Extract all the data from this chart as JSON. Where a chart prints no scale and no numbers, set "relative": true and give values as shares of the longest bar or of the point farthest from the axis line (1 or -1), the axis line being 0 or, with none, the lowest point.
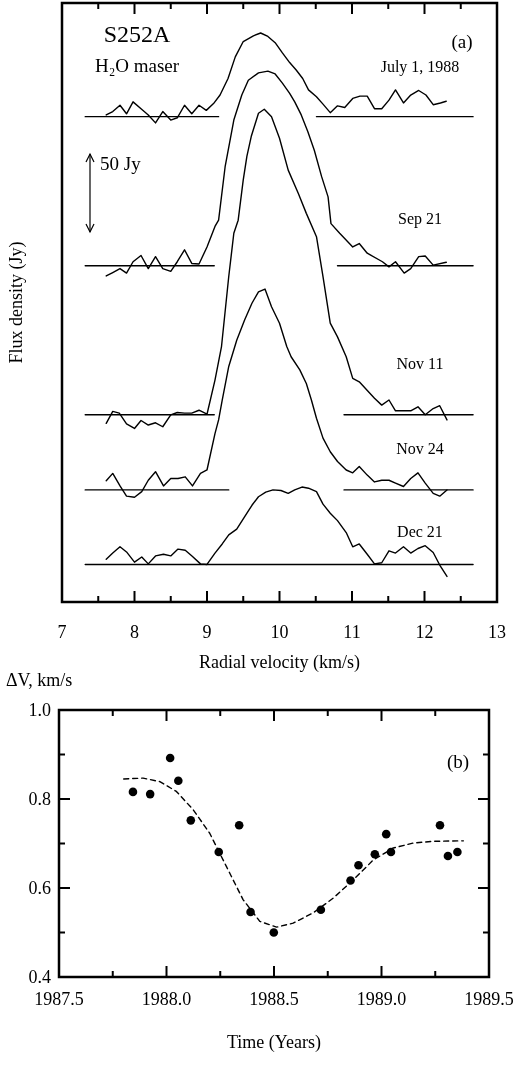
{
  "chart_data": [
    {
      "type": "line",
      "relative": true,
      "xlabel": "Radial velocity (km/s)",
      "ylabel": "Flux density (Jy)",
      "annotations": [
        "S252A",
        "H₂O maser",
        "(a)",
        "50 Jy"
      ],
      "xlim": [
        7,
        13
      ],
      "xticks": [
        7,
        {
          "value": 7.5,
          "label": null
        },
        8,
        {
          "value": 8.5,
          "label": null
        },
        9,
        {
          "value": 9.5,
          "label": null
        },
        10,
        {
          "value": 10.5,
          "label": null
        },
        11,
        {
          "value": 11.5,
          "label": null
        },
        12,
        {
          "value": 12.5,
          "label": null
        },
        13
      ],
      "series": [
        {
          "name": "July 1, 1988",
          "color": "#000000",
          "x": [
            7.61,
            7.7,
            7.8,
            7.89,
            7.98,
            8.09,
            8.19,
            8.29,
            8.39,
            8.5,
            8.59,
            8.69,
            8.79,
            8.89,
            8.99,
            9.09,
            9.18,
            9.29,
            9.39,
            9.5,
            9.64,
            9.74,
            9.84,
            9.94,
            10.04,
            10.14,
            10.23,
            10.32,
            10.4,
            10.51,
            10.6,
            10.7,
            10.8,
            10.9,
            11.01,
            11.11,
            11.21,
            11.31,
            11.41,
            11.51,
            11.6,
            11.71,
            11.81,
            11.92,
            12.02,
            12.12,
            12.22,
            12.3
          ],
          "values": [
            0.856,
            0.862,
            0.873,
            0.858,
            0.879,
            0.867,
            0.856,
            0.842,
            0.862,
            0.847,
            0.851,
            0.873,
            0.858,
            0.873,
            0.864,
            0.876,
            0.891,
            0.92,
            0.958,
            0.985,
            0.995,
            1.0,
            0.994,
            0.983,
            0.965,
            0.948,
            0.935,
            0.92,
            0.9,
            0.888,
            0.875,
            0.86,
            0.872,
            0.869,
            0.885,
            0.889,
            0.889,
            0.867,
            0.867,
            0.882,
            0.9,
            0.877,
            0.891,
            0.899,
            0.891,
            0.874,
            0.877,
            0.88
          ]
        },
        {
          "name": "Sep 21",
          "color": "#000000",
          "x": [
            7.61,
            7.7,
            7.8,
            7.89,
            7.98,
            8.09,
            8.19,
            8.29,
            8.39,
            8.5,
            8.59,
            8.69,
            8.79,
            8.89,
            9.0,
            9.11,
            9.16,
            9.25,
            9.37,
            9.48,
            9.57,
            9.71,
            9.84,
            9.94,
            10.04,
            10.14,
            10.21,
            10.3,
            10.39,
            10.48,
            10.58,
            10.67,
            10.71,
            10.83,
            11.01,
            11.1,
            11.21,
            11.42,
            11.51,
            11.6,
            11.72,
            11.81,
            11.92,
            12.01,
            12.12,
            12.3
          ],
          "values": [
            0.573,
            0.579,
            0.586,
            0.578,
            0.598,
            0.609,
            0.586,
            0.607,
            0.586,
            0.581,
            0.598,
            0.619,
            0.595,
            0.594,
            0.624,
            0.66,
            0.671,
            0.765,
            0.847,
            0.891,
            0.917,
            0.93,
            0.933,
            0.928,
            0.912,
            0.894,
            0.879,
            0.856,
            0.827,
            0.794,
            0.748,
            0.712,
            0.665,
            0.648,
            0.624,
            0.63,
            0.613,
            0.598,
            0.589,
            0.598,
            0.578,
            0.586,
            0.607,
            0.608,
            0.592,
            0.597
          ]
        },
        {
          "name": "Nov 11",
          "color": "#000000",
          "x": [
            7.61,
            7.7,
            7.79,
            7.89,
            8.0,
            8.09,
            8.19,
            8.29,
            8.39,
            8.5,
            8.59,
            8.69,
            8.79,
            8.89,
            9.0,
            9.11,
            9.2,
            9.3,
            9.37,
            9.43,
            9.5,
            9.55,
            9.61,
            9.71,
            9.79,
            9.89,
            10.0,
            10.12,
            10.26,
            10.37,
            10.51,
            10.6,
            10.7,
            10.8,
            10.92,
            11.01,
            11.1,
            11.31,
            11.41,
            11.51,
            11.6,
            11.81,
            11.91,
            12.01,
            12.12,
            12.21,
            12.31
          ],
          "values": [
            0.314,
            0.335,
            0.332,
            0.313,
            0.305,
            0.319,
            0.311,
            0.315,
            0.308,
            0.329,
            0.333,
            0.332,
            0.332,
            0.337,
            0.33,
            0.39,
            0.449,
            0.572,
            0.648,
            0.671,
            0.742,
            0.783,
            0.818,
            0.859,
            0.866,
            0.853,
            0.815,
            0.759,
            0.718,
            0.683,
            0.642,
            0.572,
            0.49,
            0.466,
            0.431,
            0.393,
            0.387,
            0.358,
            0.346,
            0.355,
            0.336,
            0.336,
            0.343,
            0.329,
            0.34,
            0.345,
            0.32
          ]
        },
        {
          "name": "Nov 24",
          "color": "#000000",
          "x": [
            7.61,
            7.7,
            7.8,
            7.89,
            8.0,
            8.1,
            8.19,
            8.29,
            8.4,
            8.5,
            8.6,
            8.7,
            8.8,
            8.91,
            9.0,
            9.11,
            9.16,
            9.21,
            9.3,
            9.41,
            9.52,
            9.62,
            9.71,
            9.8,
            9.89,
            10.0,
            10.1,
            10.16,
            10.28,
            10.37,
            10.44,
            10.51,
            10.6,
            10.7,
            10.8,
            10.92,
            11.01,
            11.1,
            11.21,
            11.31,
            11.41,
            11.51,
            11.6,
            11.71,
            11.81,
            11.91,
            12.01,
            12.12,
            12.21,
            12.31
          ],
          "values": [
            0.213,
            0.226,
            0.204,
            0.186,
            0.184,
            0.194,
            0.214,
            0.229,
            0.204,
            0.217,
            0.217,
            0.22,
            0.204,
            0.226,
            0.232,
            0.296,
            0.32,
            0.355,
            0.414,
            0.46,
            0.496,
            0.525,
            0.545,
            0.55,
            0.519,
            0.49,
            0.449,
            0.431,
            0.408,
            0.384,
            0.355,
            0.323,
            0.288,
            0.264,
            0.247,
            0.232,
            0.227,
            0.238,
            0.223,
            0.211,
            0.214,
            0.214,
            0.209,
            0.203,
            0.217,
            0.227,
            0.209,
            0.191,
            0.186,
            0.197
          ]
        },
        {
          "name": "Dec 21",
          "color": "#000000",
          "x": [
            7.61,
            7.7,
            7.8,
            7.89,
            8.0,
            8.1,
            8.19,
            8.29,
            8.4,
            8.5,
            8.6,
            8.7,
            8.8,
            8.91,
            9.0,
            9.11,
            9.21,
            9.3,
            9.41,
            9.52,
            9.62,
            9.71,
            9.81,
            9.91,
            10.02,
            10.12,
            10.21,
            10.31,
            10.4,
            10.51,
            10.6,
            10.7,
            10.8,
            10.92,
            11.01,
            11.1,
            11.21,
            11.31,
            11.41,
            11.51,
            11.6,
            11.71,
            11.81,
            11.91,
            12.01,
            12.12,
            12.21,
            12.31
          ],
          "values": [
            0.075,
            0.086,
            0.097,
            0.088,
            0.07,
            0.079,
            0.067,
            0.081,
            0.084,
            0.081,
            0.093,
            0.091,
            0.08,
            0.067,
            0.066,
            0.086,
            0.102,
            0.118,
            0.128,
            0.15,
            0.17,
            0.185,
            0.193,
            0.197,
            0.196,
            0.191,
            0.197,
            0.202,
            0.2,
            0.194,
            0.172,
            0.156,
            0.143,
            0.122,
            0.097,
            0.102,
            0.084,
            0.067,
            0.069,
            0.09,
            0.086,
            0.097,
            0.086,
            0.094,
            0.099,
            0.087,
            0.065,
            0.045
          ]
        },
        {
          "color": "#000000",
          "x": [
            7.32,
            9.16,
            9.8,
            10.51,
            12.67
          ],
          "values": [
            0.853,
            0.853,
            null,
            0.853,
            0.853
          ]
        },
        {
          "color": "#000000",
          "x": [
            7.32,
            9.1,
            9.8,
            10.8,
            12.67
          ],
          "values": [
            0.591,
            0.591,
            null,
            0.591,
            0.591
          ]
        },
        {
          "color": "#000000",
          "x": [
            7.32,
            9.1,
            9.8,
            10.89,
            12.67
          ],
          "values": [
            0.329,
            0.329,
            null,
            0.329,
            0.329
          ]
        },
        {
          "color": "#000000",
          "x": [
            7.32,
            9.3,
            9.8,
            10.89,
            12.67
          ],
          "values": [
            0.197,
            0.197,
            null,
            0.197,
            0.197
          ]
        },
        {
          "color": "#000000",
          "x": [
            7.32,
            12.67
          ],
          "values": [
            0.066,
            0.066
          ]
        }
      ]
    },
    {
      "type": "scatter",
      "xlabel": "Time (Years)",
      "ylabel": "ΔV, km/s",
      "annotations": [
        "(b)"
      ],
      "xlim": [
        1987.5,
        1989.5
      ],
      "xticks": [
        {
          "value": 1987.5,
          "label": "1987.5"
        },
        {
          "value": 1987.75,
          "label": null
        },
        {
          "value": 1988,
          "label": "1988.0"
        },
        {
          "value": 1988.25,
          "label": null
        },
        {
          "value": 1988.5,
          "label": "1988.5"
        },
        {
          "value": 1988.75,
          "label": null
        },
        {
          "value": 1989,
          "label": "1989.0"
        },
        {
          "value": 1989.25,
          "label": null
        },
        {
          "value": 1989.5,
          "label": "1989.5"
        }
      ],
      "ylim": [
        0.4,
        1.0
      ],
      "yticks": [
        {
          "value": 0.4,
          "label": "0.4"
        },
        {
          "value": 0.5,
          "label": null
        },
        {
          "value": 0.6,
          "label": "0.6"
        },
        {
          "value": 0.7,
          "label": null
        },
        {
          "value": 0.8,
          "label": "0.8"
        },
        {
          "value": 0.9,
          "label": null
        },
        {
          "value": 1.0,
          "label": "1.0"
        }
      ],
      "series": [
        {
          "marker": "circle",
          "color": "#000000",
          "x": [
            1987.844,
            1987.924,
            1988.017,
            1988.055,
            1988.113,
            1988.243,
            1988.338,
            1988.391,
            1988.499,
            1988.718,
            1988.856,
            1988.893,
            1988.969,
            1989.022,
            1989.044,
            1989.272,
            1989.309,
            1989.353
          ],
          "values": [
            0.816,
            0.811,
            0.892,
            0.841,
            0.752,
            0.681,
            0.741,
            0.546,
            0.5,
            0.551,
            0.617,
            0.651,
            0.676,
            0.721,
            0.681,
            0.741,
            0.672,
            0.681
          ]
        },
        {
          "type": "line",
          "line_style": "dashed",
          "color": "#000000",
          "x": [
            1987.801,
            1987.891,
            1987.969,
            1988.046,
            1988.124,
            1988.201,
            1988.279,
            1988.356,
            1988.434,
            1988.512,
            1988.589,
            1988.682,
            1988.775,
            1988.868,
            1988.962,
            1989.055,
            1989.148,
            1989.241,
            1989.381
          ],
          "values": [
            0.845,
            0.847,
            0.839,
            0.817,
            0.776,
            0.723,
            0.648,
            0.574,
            0.525,
            0.512,
            0.521,
            0.544,
            0.577,
            0.618,
            0.663,
            0.69,
            0.701,
            0.705,
            0.706
          ]
        }
      ]
    }
  ]
}
